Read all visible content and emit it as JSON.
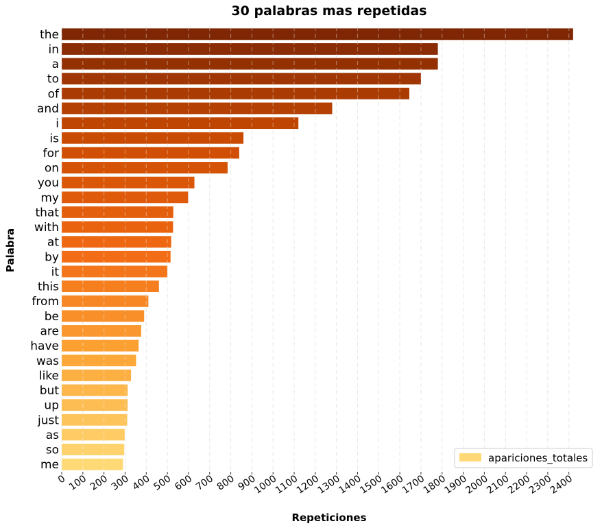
{
  "chart_data": {
    "type": "bar",
    "orientation": "horizontal",
    "title": "30 palabras mas repetidas",
    "xlabel": "Repeticiones",
    "ylabel": "Palabra",
    "xlim": [
      0,
      2450
    ],
    "xticks": [
      0,
      100,
      200,
      300,
      400,
      500,
      600,
      700,
      800,
      900,
      1000,
      1100,
      1200,
      1300,
      1400,
      1500,
      1600,
      1700,
      1800,
      1900,
      2000,
      2100,
      2200,
      2300,
      2400
    ],
    "grid": "vertical dashed",
    "legend_position": "bottom-right",
    "colormap": "orange gradient (dark to light)",
    "categories": [
      "the",
      "in",
      "a",
      "to",
      "of",
      "and",
      "i",
      "is",
      "for",
      "on",
      "you",
      "my",
      "that",
      "with",
      "at",
      "by",
      "it",
      "this",
      "from",
      "be",
      "are",
      "have",
      "was",
      "like",
      "but",
      "up",
      "just",
      "as",
      "so",
      "me"
    ],
    "series": [
      {
        "name": "apariciones_totales",
        "values": [
          2420,
          1780,
          1780,
          1700,
          1645,
          1280,
          1120,
          860,
          840,
          785,
          628,
          598,
          528,
          527,
          518,
          515,
          500,
          460,
          410,
          390,
          376,
          364,
          352,
          328,
          312,
          312,
          310,
          298,
          296,
          290
        ]
      }
    ],
    "legend_color": "#fed976"
  }
}
